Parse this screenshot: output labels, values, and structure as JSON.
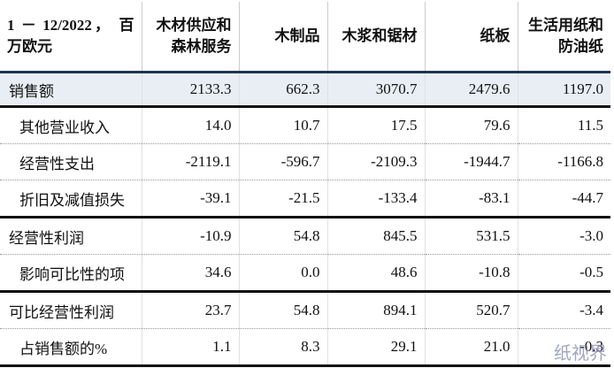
{
  "table": {
    "header": [
      "1 － 12/2022， 百万欧元",
      "木材供应和森林服务",
      "木制品",
      "木浆和锯材",
      "纸板",
      "生活用纸和防油纸"
    ],
    "rows": [
      [
        "销售额",
        "2133.3",
        "662.3",
        "3070.7",
        "2479.6",
        "1197.0"
      ],
      [
        "其他营业收入",
        "14.0",
        "10.7",
        "17.5",
        "79.6",
        "11.5"
      ],
      [
        "经营性支出",
        "-2119.1",
        "-596.7",
        "-2109.3",
        "-1944.7",
        "-1166.8"
      ],
      [
        "折旧及减值损失",
        "-39.1",
        "-21.5",
        "-133.4",
        "-83.1",
        "-44.7"
      ],
      [
        "经营性利润",
        "-10.9",
        "54.8",
        "845.5",
        "531.5",
        "-3.0"
      ],
      [
        "影响可比性的项",
        "34.6",
        "0.0",
        "48.6",
        "-10.8",
        "-0.5"
      ],
      [
        "可比经营性利润",
        "23.7",
        "54.8",
        "894.1",
        "520.7",
        "-3.4"
      ],
      [
        "占销售额的%",
        "1.1",
        "8.3",
        "29.1",
        "21.0",
        "-0.3"
      ]
    ]
  },
  "watermark": "纸视界"
}
